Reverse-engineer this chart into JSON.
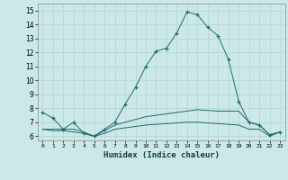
{
  "xlabel": "Humidex (Indice chaleur)",
  "ylabel": "",
  "background_color": "#cce8e8",
  "grid_color": "#b8d8d8",
  "line_color": "#1e6b6b",
  "xlim": [
    -0.5,
    23.5
  ],
  "ylim": [
    5.7,
    15.5
  ],
  "yticks": [
    6,
    7,
    8,
    9,
    10,
    11,
    12,
    13,
    14,
    15
  ],
  "xticks": [
    0,
    1,
    2,
    3,
    4,
    5,
    6,
    7,
    8,
    9,
    10,
    11,
    12,
    13,
    14,
    15,
    16,
    17,
    18,
    19,
    20,
    21,
    22,
    23
  ],
  "series": [
    {
      "x": [
        0,
        1,
        2,
        3,
        4,
        5,
        6,
        7,
        8,
        9,
        10,
        11,
        12,
        13,
        14,
        15,
        16,
        17,
        18,
        19,
        20,
        21,
        22,
        23
      ],
      "y": [
        7.7,
        7.3,
        6.5,
        7.0,
        6.2,
        6.0,
        6.5,
        7.0,
        8.3,
        9.5,
        11.0,
        12.1,
        12.3,
        13.4,
        14.9,
        14.7,
        13.8,
        13.2,
        11.5,
        8.5,
        7.0,
        6.8,
        6.1,
        6.3
      ],
      "marker": "+"
    },
    {
      "x": [
        0,
        1,
        2,
        3,
        4,
        5,
        6,
        7,
        8,
        9,
        10,
        11,
        12,
        13,
        14,
        15,
        16,
        17,
        18,
        19,
        20,
        21,
        22,
        23
      ],
      "y": [
        6.5,
        6.5,
        6.5,
        6.5,
        6.3,
        6.0,
        6.4,
        6.8,
        7.0,
        7.2,
        7.4,
        7.5,
        7.6,
        7.7,
        7.8,
        7.9,
        7.85,
        7.8,
        7.8,
        7.8,
        7.0,
        6.8,
        6.1,
        6.3
      ],
      "marker": null
    },
    {
      "x": [
        0,
        1,
        2,
        3,
        4,
        5,
        6,
        7,
        8,
        9,
        10,
        11,
        12,
        13,
        14,
        15,
        16,
        17,
        18,
        19,
        20,
        21,
        22,
        23
      ],
      "y": [
        6.5,
        6.4,
        6.4,
        6.3,
        6.2,
        6.0,
        6.2,
        6.5,
        6.6,
        6.7,
        6.8,
        6.85,
        6.9,
        6.95,
        7.0,
        7.0,
        6.95,
        6.9,
        6.85,
        6.8,
        6.5,
        6.5,
        6.0,
        6.3
      ],
      "marker": null
    }
  ]
}
